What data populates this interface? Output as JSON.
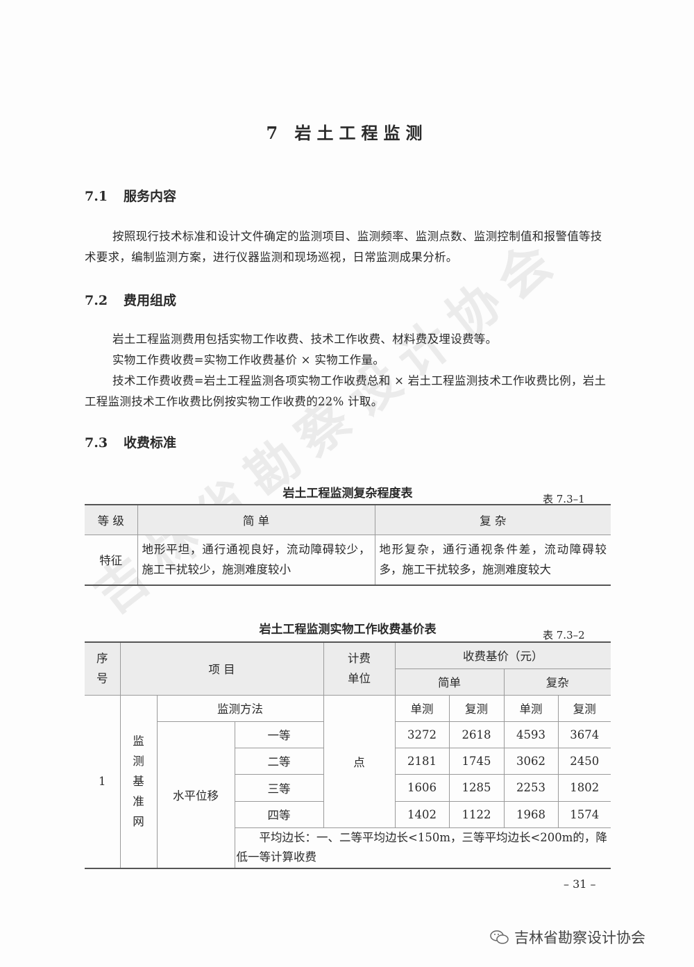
{
  "chapter_title": "7 岩土工程监测",
  "sections": [
    {
      "num": "7.1",
      "title": "服务内容"
    },
    {
      "num": "7.2",
      "title": "费用组成"
    },
    {
      "num": "7.3",
      "title": "收费标准"
    }
  ],
  "s1_paragraphs": [
    "按照现行技术标准和设计文件确定的监测项目、监测频率、监测点数、监测控制值和报警值等技术要求，编制监测方案，进行仪器监测和现场巡视，日常监测成果分析。"
  ],
  "s2_paragraphs": [
    "岩土工程监测费用包括实物工作收费、技术工作收费、材料费及埋设费等。",
    "实物工作费收费=实物工作收费基价 × 实物工作量。",
    "技术工作费收费=岩土工程监测各项实物工作收费总和 × 岩土工程监测技术工作收费比例，岩土工程监测技术工作收费比例按实物工作收费的22% 计取。"
  ],
  "table1": {
    "caption": "岩土工程监测复杂程度表",
    "number": "表 7.3–1",
    "headers": [
      "等 级",
      "简 单",
      "复 杂"
    ],
    "row": [
      "特征",
      "地形平坦，通行通视良好，流动障碍较少，施工干扰较少，施测难度较小",
      "地形复杂，通行通视条件差，流动障碍较多，施工干扰较多，施测难度较大"
    ]
  },
  "table2": {
    "caption": "岩土工程监测实物工作收费基价表",
    "number": "表 7.3–2",
    "h_seq": "序号",
    "h_item": "项 目",
    "h_unit": "计费单位",
    "h_price": "收费基价（元）",
    "h_simple": "简单",
    "h_complex": "复杂",
    "seq": "1",
    "category": "监测基准网",
    "method_label": "监测方法",
    "method": "水平位移",
    "unit": "点",
    "sub_headers": [
      "单测",
      "复测",
      "单测",
      "复测"
    ],
    "rows": [
      {
        "grade": "一等",
        "values": [
          "3272",
          "2618",
          "4593",
          "3674"
        ]
      },
      {
        "grade": "二等",
        "values": [
          "2181",
          "1745",
          "3062",
          "2450"
        ]
      },
      {
        "grade": "三等",
        "values": [
          "1606",
          "1285",
          "2253",
          "1802"
        ]
      },
      {
        "grade": "四等",
        "values": [
          "1402",
          "1122",
          "1968",
          "1574"
        ]
      }
    ],
    "note": "平均边长：一、二等平均边长<150m，三等平均边长<200m的，降低一等计算收费"
  },
  "watermark": "吉林省勘察设计协会",
  "page_number": "– 31 –",
  "footer_logo": "吉林省勘察设计协会"
}
